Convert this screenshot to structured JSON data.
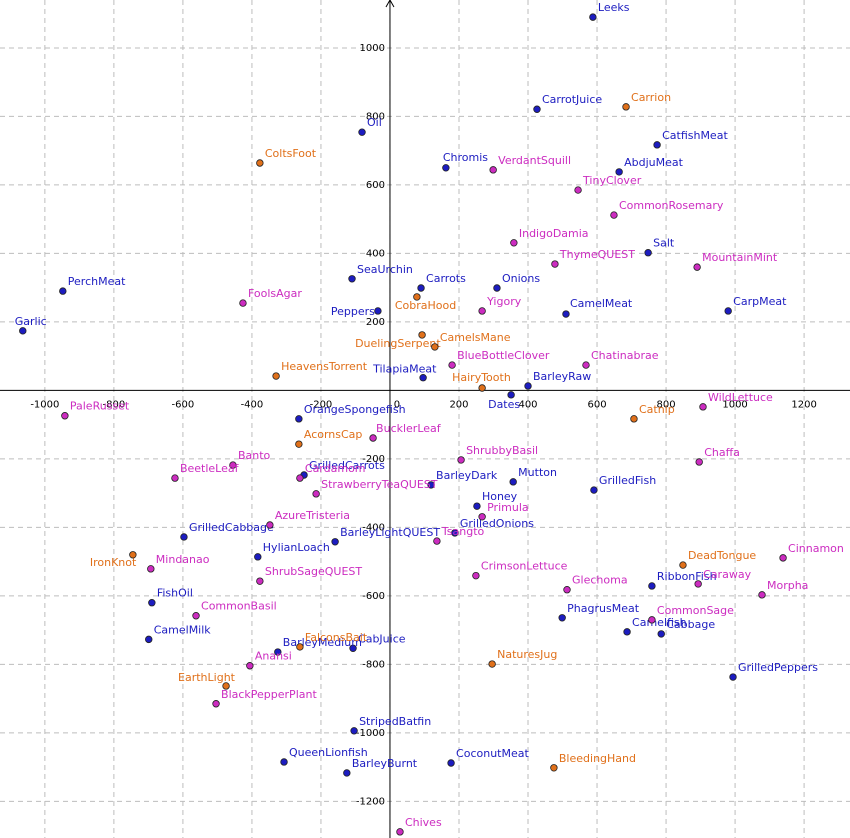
{
  "chart_data": {
    "type": "scatter",
    "xlim": [
      -1130,
      1333
    ],
    "ylim": [
      -1307,
      1140
    ],
    "xticks": [
      -1000,
      -800,
      -600,
      -400,
      -200,
      0,
      200,
      400,
      600,
      800,
      1000,
      1200
    ],
    "yticks": [
      -1200,
      -1000,
      -800,
      -600,
      -400,
      -200,
      200,
      400,
      600,
      800,
      1000
    ],
    "grid": true,
    "series": [
      {
        "color": "#1c1cc0",
        "labels": [
          "Leeks",
          "CarrotJuice",
          "Oil",
          "CatfishMeat",
          "Chromis",
          "AbdjuMeat",
          "Salt",
          "SeaUrchin",
          "PerchMeat",
          "Carrots",
          "Onions",
          "CarpMeat",
          "CamelMeat",
          "Peppers",
          "Garlic",
          "TilapiaMeat",
          "BarleyRaw",
          "Dates",
          "OrangeSpongefish",
          "GrilledCarrots",
          "BarleyDark",
          "Mutton",
          "GrilledFish",
          "Honey",
          "GrilledCabbage",
          "GrilledOnions",
          "BarleyLightQUEST",
          "HylianLoach",
          "FishOil",
          "RibbonFish",
          "PhagrusMeat",
          "Cabbage",
          "Camelfish",
          "CamelMilk",
          "CabJuice",
          "BarleyMedium",
          "GrilledPeppers",
          "StripedBatfin",
          "QueenLionfish",
          "CoconutMeat",
          "BarleyBurnt"
        ],
        "x": [
          588,
          426,
          -81,
          774,
          162,
          664,
          748,
          -110,
          -948,
          90,
          310,
          980,
          510,
          -35,
          -1064,
          96,
          400,
          351,
          -264,
          -249,
          119,
          357,
          591,
          252,
          -597,
          188,
          -159,
          -383,
          -690,
          759,
          499,
          786,
          687,
          -699,
          -107,
          -325,
          994,
          -104,
          -307,
          177,
          -125
        ],
        "y": [
          1090,
          821,
          754,
          717,
          650,
          638,
          402,
          326,
          290,
          299,
          299,
          232,
          223,
          232,
          174,
          37,
          13,
          -13,
          -83,
          -247,
          -276,
          -267,
          -291,
          -338,
          -428,
          -416,
          -442,
          -486,
          -620,
          -571,
          -664,
          -711,
          -705,
          -727,
          -753,
          -764,
          -837,
          -994,
          -1085,
          -1088,
          -1117
        ]
      },
      {
        "color": "#e0701a",
        "labels": [
          "Carrion",
          "ColtsFoot",
          "CobraHood",
          "DuelingSerpent",
          "CamelsMane",
          "HeavensTorrent",
          "HairyTooth",
          "Catnip",
          "AcornsCap",
          "DeadTongue",
          "IronKnot",
          "FalconsBait",
          "NaturesJug",
          "EarthLight",
          "BleedingHand"
        ],
        "x": [
          684,
          -377,
          78,
          93,
          130,
          -330,
          267,
          707,
          -264,
          849,
          -745,
          -261,
          296,
          -475,
          475
        ],
        "y": [
          828,
          664,
          273,
          162,
          127,
          42,
          7,
          -83,
          -157,
          -510,
          -480,
          -749,
          -799,
          -863,
          -1102
        ]
      },
      {
        "color": "#cc2cc0",
        "labels": [
          "VerdantSquill",
          "TinyClover",
          "CommonRosemary",
          "IndigoDamia",
          "ThymeQUEST",
          "MountainMint",
          "FoolsAgar",
          "Yigory",
          "BlueBottleClover",
          "Chatinabrae",
          "WildLettuce",
          "PaleRusset",
          "BucklerLeaf",
          "ShrubbyBasil",
          "Chaffa",
          "Banto",
          "BeetleLeaf",
          "Cardamom",
          "StrawberryTeaQUEST",
          "Primula",
          "AzureTristeria",
          "Tsangto",
          "Cinnamon",
          "Mindanao",
          "CrimsonLettuce",
          "ShrubSageQUEST",
          "Caraway",
          "Glechoma",
          "Morpha",
          "CommonBasil",
          "CommonSage",
          "Anansi",
          "BlackPepperPlant",
          "Chives"
        ],
        "x": [
          299,
          545,
          649,
          359,
          478,
          890,
          -426,
          267,
          180,
          568,
          907,
          -942,
          -49,
          206,
          896,
          -455,
          -623,
          -261,
          -214,
          267,
          -348,
          136,
          1139,
          -693,
          249,
          -377,
          893,
          513,
          1078,
          -562,
          759,
          -406,
          -504,
          29
        ],
        "y": [
          644,
          585,
          512,
          431,
          369,
          360,
          255,
          232,
          74,
          74,
          -48,
          -74,
          -139,
          -203,
          -209,
          -218,
          -256,
          -256,
          -302,
          -369,
          -393,
          -440,
          -489,
          -521,
          -541,
          -557,
          -565,
          -582,
          -597,
          -658,
          -670,
          -804,
          -915,
          -1289
        ]
      }
    ]
  }
}
